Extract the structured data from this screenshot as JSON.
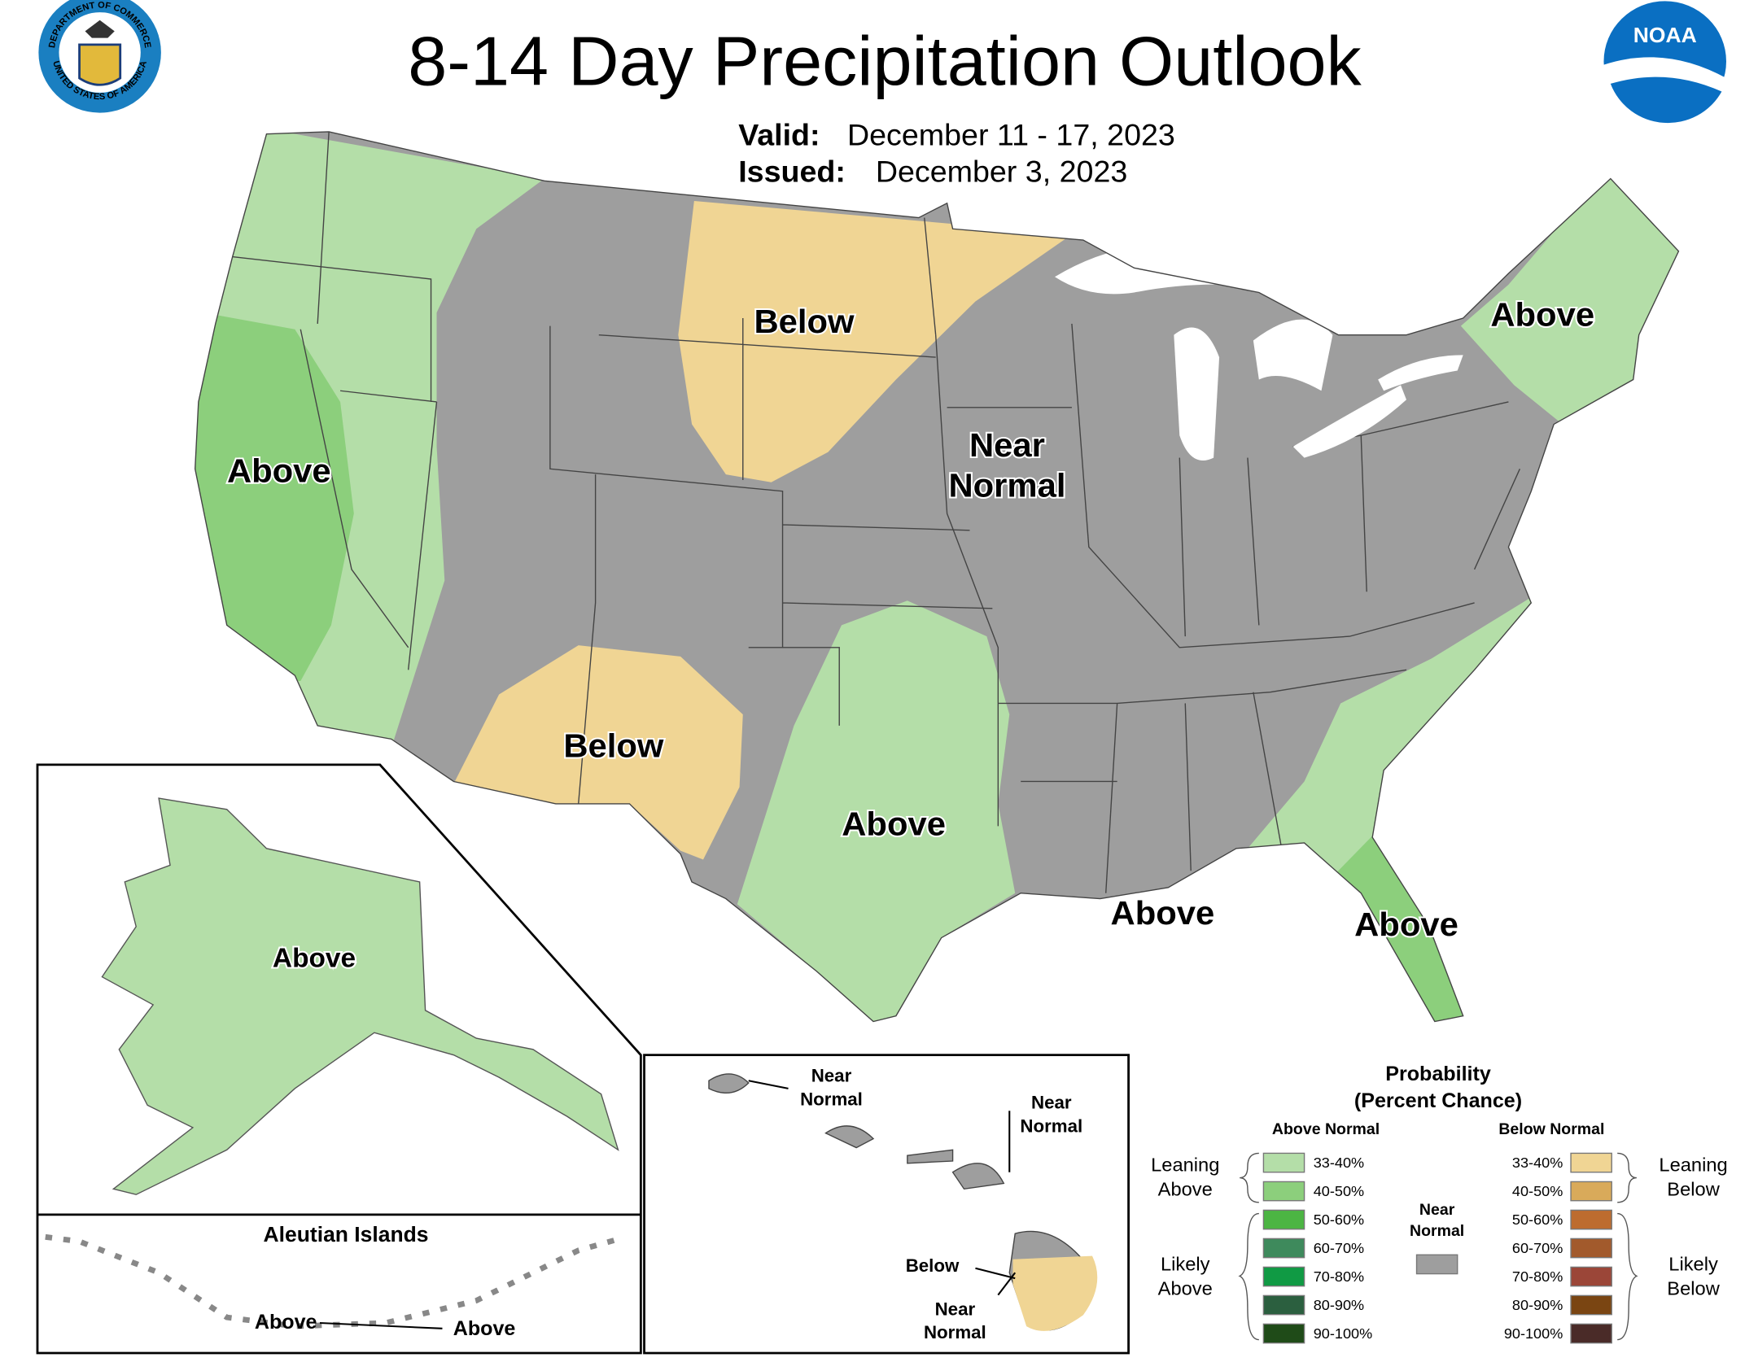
{
  "header": {
    "title": "8-14 Day Precipitation Outlook",
    "valid_label": "Valid:",
    "valid_date": "December 11 - 17, 2023",
    "issued_label": "Issued:",
    "issued_date": "December 3, 2023"
  },
  "logos": {
    "commerce_top": "DEPARTMENT OF COMMERCE",
    "commerce_bottom": "UNITED STATES OF AMERICA",
    "noaa": "NOAA"
  },
  "conus_labels": [
    [
      "Above"
    ],
    [
      "Below"
    ],
    [
      "Near",
      "Normal"
    ],
    [
      "Below"
    ],
    [
      "Above"
    ],
    [
      "Above"
    ],
    [
      "Above"
    ],
    [
      "Above"
    ]
  ],
  "alaska": {
    "label": "Above"
  },
  "aleutians": {
    "title": "Aleutian Islands",
    "labels": [
      "Above",
      "Above"
    ]
  },
  "hawaii": {
    "labels": [
      [
        "Near",
        "Normal"
      ],
      [
        "Near",
        "Normal"
      ],
      [
        "Below"
      ],
      [
        "Near",
        "Normal"
      ]
    ]
  },
  "legend": {
    "title": [
      "Probability",
      "(Percent Chance)"
    ],
    "above_heading": "Above Normal",
    "below_heading": "Below Normal",
    "above_bins": [
      {
        "label": "33-40%",
        "color": "#b4dea8"
      },
      {
        "label": "40-50%",
        "color": "#8ccf7c"
      },
      {
        "label": "50-60%",
        "color": "#4cb543"
      },
      {
        "label": "60-70%",
        "color": "#3e8a5c"
      },
      {
        "label": "70-80%",
        "color": "#109a44"
      },
      {
        "label": "80-90%",
        "color": "#2b5f3f"
      },
      {
        "label": "90-100%",
        "color": "#1f4b18"
      }
    ],
    "below_bins": [
      {
        "label": "33-40%",
        "color": "#f0d594"
      },
      {
        "label": "40-50%",
        "color": "#d9aa5a"
      },
      {
        "label": "50-60%",
        "color": "#bd6c2f"
      },
      {
        "label": "60-70%",
        "color": "#a25a2c"
      },
      {
        "label": "70-80%",
        "color": "#9b4638"
      },
      {
        "label": "80-90%",
        "color": "#7a4512"
      },
      {
        "label": "90-100%",
        "color": "#4a2b28"
      }
    ],
    "near_normal": {
      "label": [
        "Near",
        "Normal"
      ],
      "color": "#9e9e9e"
    },
    "groups": {
      "leaning_above": [
        "Leaning",
        "Above"
      ],
      "likely_above": [
        "Likely",
        "Above"
      ],
      "leaning_below": [
        "Leaning",
        "Below"
      ],
      "likely_below": [
        "Likely",
        "Below"
      ]
    }
  }
}
